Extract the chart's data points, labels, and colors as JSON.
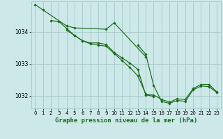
{
  "title": "",
  "xlabel": "Graphe pression niveau de la mer (hPa)",
  "ylabel": "",
  "bg_color": "#cce8e8",
  "grid_color": "#aacccc",
  "line_color": "#1a6b1a",
  "xlim": [
    -0.5,
    23.5
  ],
  "ylim": [
    1031.6,
    1034.95
  ],
  "yticks": [
    1032,
    1033,
    1034
  ],
  "xticks": [
    0,
    1,
    2,
    3,
    4,
    5,
    6,
    7,
    8,
    9,
    10,
    11,
    12,
    13,
    14,
    15,
    16,
    17,
    18,
    19,
    20,
    21,
    22,
    23
  ],
  "series": [
    {
      "x": [
        0,
        1,
        4,
        5,
        9,
        10,
        14
      ],
      "y": [
        1034.85,
        1034.68,
        1034.18,
        1034.12,
        1034.08,
        1034.28,
        1033.22
      ]
    },
    {
      "x": [
        2,
        3,
        4,
        5,
        6,
        7,
        8,
        9,
        10,
        11,
        12,
        13,
        14,
        15
      ],
      "y": [
        1034.35,
        1034.32,
        1034.1,
        1033.88,
        1033.72,
        1033.65,
        1033.65,
        1033.6,
        1033.35,
        1033.18,
        1033.02,
        1032.82,
        1032.02,
        1031.98
      ]
    },
    {
      "x": [
        4,
        5,
        6,
        7,
        8,
        9,
        10,
        11,
        12,
        13,
        14,
        15,
        16,
        17,
        18,
        19,
        20,
        21,
        22,
        23
      ],
      "y": [
        1034.05,
        1033.88,
        1033.72,
        1033.62,
        1033.58,
        1033.55,
        1033.32,
        1033.1,
        1032.88,
        1032.62,
        1032.05,
        1032.02,
        1031.88,
        1031.8,
        1031.9,
        1031.88,
        1032.22,
        1032.35,
        1032.35,
        1032.12
      ]
    },
    {
      "x": [
        13,
        14,
        15,
        16,
        17,
        18,
        19,
        20,
        21,
        22,
        23
      ],
      "y": [
        1033.58,
        1033.3,
        1032.32,
        1031.82,
        1031.76,
        1031.85,
        1031.82,
        1032.18,
        1032.3,
        1032.28,
        1032.1
      ]
    }
  ]
}
